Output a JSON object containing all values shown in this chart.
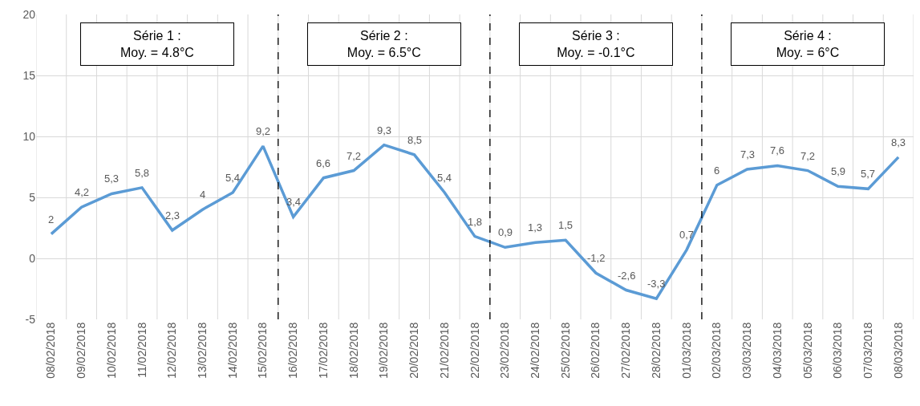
{
  "chart_data": {
    "type": "line",
    "categories": [
      "08/02/2018",
      "09/02/2018",
      "10/02/2018",
      "11/02/2018",
      "12/02/2018",
      "13/02/2018",
      "14/02/2018",
      "15/02/2018",
      "16/02/2018",
      "17/02/2018",
      "18/02/2018",
      "19/02/2018",
      "20/02/2018",
      "21/02/2018",
      "22/02/2018",
      "23/02/2018",
      "24/02/2018",
      "25/02/2018",
      "26/02/2018",
      "27/02/2018",
      "28/02/2018",
      "01/03/2018",
      "02/03/2018",
      "03/03/2018",
      "04/03/2018",
      "05/03/2018",
      "06/03/2018",
      "07/03/2018",
      "08/03/2018"
    ],
    "series": [
      {
        "color": "#5b9bd5",
        "values": [
          2,
          4.2,
          5.3,
          5.8,
          2.3,
          4,
          5.4,
          9.2,
          3.4,
          6.6,
          7.2,
          9.3,
          8.5,
          5.4,
          1.8,
          0.9,
          1.3,
          1.5,
          -1.2,
          -2.6,
          -3.3,
          0.7,
          6,
          7.3,
          7.6,
          7.2,
          5.9,
          5.7,
          8.3
        ],
        "value_labels": [
          "2",
          "4,2",
          "5,3",
          "5,8",
          "2,3",
          "4",
          "5,4",
          "9,2",
          "3,4",
          "6,6",
          "7,2",
          "9,3",
          "8,5",
          "5,4",
          "1,8",
          "0,9",
          "1,3",
          "1,5",
          "-1,2",
          "-2,6",
          "-3,3",
          "0,7",
          "6",
          "7,3",
          "7,6",
          "7,2",
          "5,9",
          "5,7",
          "8,3"
        ]
      }
    ],
    "ylim": [
      -5,
      20
    ],
    "yticks": [
      -5,
      0,
      5,
      10,
      15,
      20
    ],
    "grid": true,
    "marker": "none",
    "line_style": "solid",
    "annotations": [
      "Série 1 :\nMoy. = 4.8°C",
      "Série 2 :\nMoy. = 6.5°C",
      "Série 3 :\nMoy. = -0.1°C",
      "Série 4 :\nMoy. = 6°C"
    ]
  }
}
